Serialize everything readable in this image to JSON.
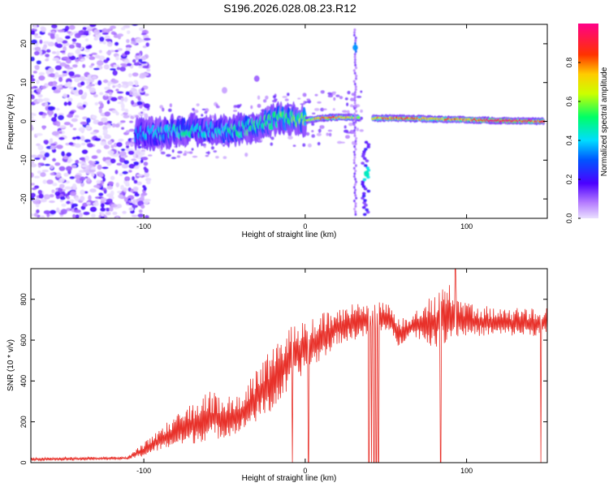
{
  "figure_title": "S196.2026.028.08.23.R12",
  "colorbar": {
    "label": "Normalized spectral amplitude",
    "ticks": [
      "0.0",
      "0.2",
      "0.4",
      "0.6",
      "0.8"
    ],
    "tick_values": [
      0.0,
      0.2,
      0.4,
      0.6,
      0.8
    ],
    "range": [
      0,
      1
    ]
  },
  "chart_data": [
    {
      "type": "heatmap",
      "title": "S196.2026.028.08.23.R12",
      "xlabel": "Height of straight line (km)",
      "ylabel": "Frequency (Hz)",
      "xlim": [
        -170,
        150
      ],
      "ylim": [
        -25,
        25
      ],
      "xticks": [
        -100,
        0,
        100
      ],
      "xtick_labels": [
        "-100",
        "0",
        "100"
      ],
      "yticks": [
        -20,
        -10,
        0,
        10,
        20
      ],
      "ytick_labels": [
        "-20",
        "-10",
        "0",
        "10",
        "20"
      ],
      "colormap": "rainbow (purple→blue→cyan→green→yellow→orange→red)",
      "main_ridge": {
        "x": [
          -105,
          -90,
          -75,
          -60,
          -45,
          -30,
          -15,
          0,
          15,
          30,
          42,
          60,
          80,
          100,
          120,
          148
        ],
        "y": [
          -3.5,
          -3,
          -2.2,
          -2.2,
          -2.5,
          -1,
          1,
          0.3,
          1,
          1,
          0.8,
          0.8,
          0.6,
          0.4,
          0.2,
          0
        ],
        "amplitude": [
          0.35,
          0.4,
          0.45,
          0.4,
          0.45,
          0.5,
          0.55,
          0.6,
          0.85,
          0.65,
          0.7,
          0.85,
          0.7,
          0.8,
          0.95,
          0.8
        ]
      },
      "features": [
        {
          "x": 31,
          "y": 19,
          "amplitude": 0.35
        },
        {
          "x": 38,
          "y": -13.5,
          "amplitude": 0.45
        },
        {
          "x": -30,
          "y": 11,
          "amplitude": 0.1
        },
        {
          "x": -50,
          "y": 8,
          "amplitude": 0.05
        }
      ],
      "noise_region_x": [
        -170,
        -105
      ]
    },
    {
      "type": "line",
      "xlabel": "Height of straight line (km)",
      "ylabel": "SNR (10 * v/v)",
      "xlim": [
        -170,
        150
      ],
      "ylim": [
        0,
        950
      ],
      "xticks": [
        -100,
        0,
        100
      ],
      "xtick_labels": [
        "-100",
        "0",
        "100"
      ],
      "yticks": [
        0,
        200,
        400,
        600,
        800
      ],
      "ytick_labels": [
        "0",
        "200",
        "400",
        "600",
        "800"
      ],
      "series": [
        {
          "name": "SNR",
          "color": "#e8312a",
          "envelope_x": [
            -170,
            -110,
            -100,
            -90,
            -80,
            -70,
            -60,
            -50,
            -40,
            -30,
            -20,
            -13,
            -5,
            0,
            10,
            20,
            30,
            40,
            50,
            58,
            65,
            72,
            80,
            90,
            100,
            110,
            120,
            130,
            140,
            150
          ],
          "envelope_low": [
            10,
            15,
            30,
            60,
            80,
            90,
            110,
            120,
            150,
            200,
            250,
            320,
            400,
            450,
            500,
            580,
            600,
            620,
            650,
            560,
            630,
            600,
            560,
            600,
            620,
            620,
            620,
            620,
            620,
            620
          ],
          "envelope_high": [
            25,
            30,
            100,
            170,
            230,
            300,
            350,
            340,
            320,
            480,
            560,
            650,
            680,
            700,
            730,
            760,
            780,
            780,
            790,
            720,
            700,
            780,
            820,
            880,
            780,
            770,
            760,
            760,
            760,
            760
          ],
          "dropouts_x": [
            -8,
            2,
            39.5,
            41,
            42.5,
            44,
            45.5,
            84,
            146
          ],
          "peak": {
            "x": 93,
            "y": 955
          }
        }
      ]
    }
  ]
}
